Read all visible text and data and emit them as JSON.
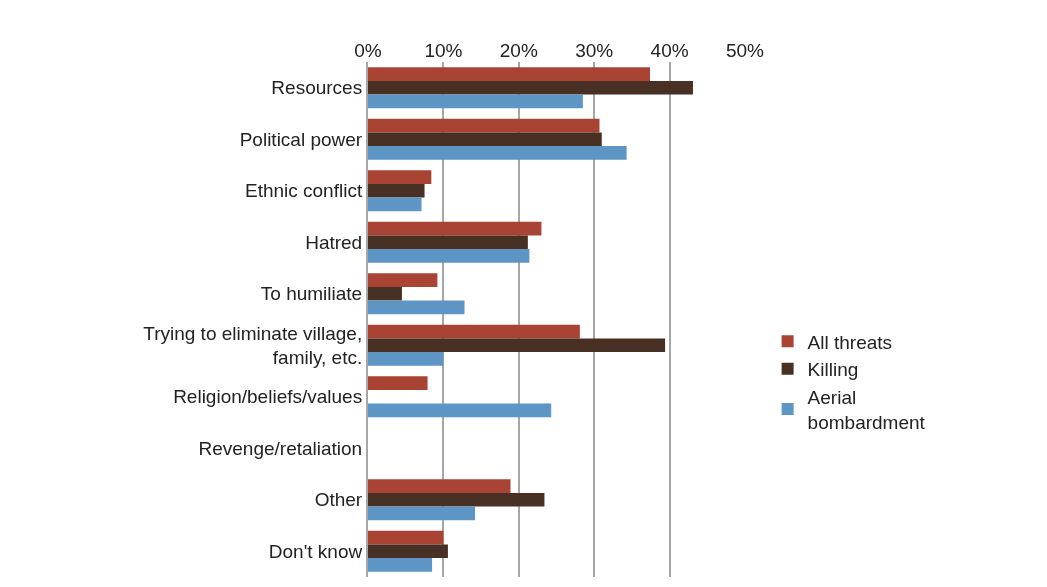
{
  "chart_data": {
    "type": "bar",
    "orientation": "horizontal",
    "categories": [
      "Resources",
      "Political power",
      "Ethnic conflict",
      "Hatred",
      "To humiliate",
      "Trying to eliminate village, family, etc.",
      "Religion/beliefs/values",
      "Revenge/retaliation",
      "Other",
      "Don't know"
    ],
    "series": [
      {
        "name": "All threats",
        "color": "#a94434",
        "values": [
          37.4,
          30.7,
          8.4,
          23.0,
          9.2,
          28.1,
          7.9,
          null,
          18.9,
          10.0
        ]
      },
      {
        "name": "Killing",
        "color": "#483025",
        "values": [
          43.1,
          31.0,
          7.5,
          21.2,
          4.5,
          39.4,
          null,
          null,
          23.4,
          10.6
        ]
      },
      {
        "name": "Aerial bombardment",
        "color": "#5d96c5",
        "values": [
          28.5,
          34.3,
          7.1,
          21.4,
          12.8,
          10.0,
          24.3,
          null,
          14.2,
          8.5
        ]
      }
    ],
    "xlim": [
      0,
      50
    ],
    "xticks": [
      {
        "value": 0,
        "label": "0%"
      },
      {
        "value": 10,
        "label": "10%"
      },
      {
        "value": 20,
        "label": "20%"
      },
      {
        "value": 30,
        "label": "30%"
      },
      {
        "value": 40,
        "label": "40%"
      },
      {
        "value": 50,
        "label": "50%"
      }
    ],
    "grid": "x",
    "legend": "right"
  }
}
